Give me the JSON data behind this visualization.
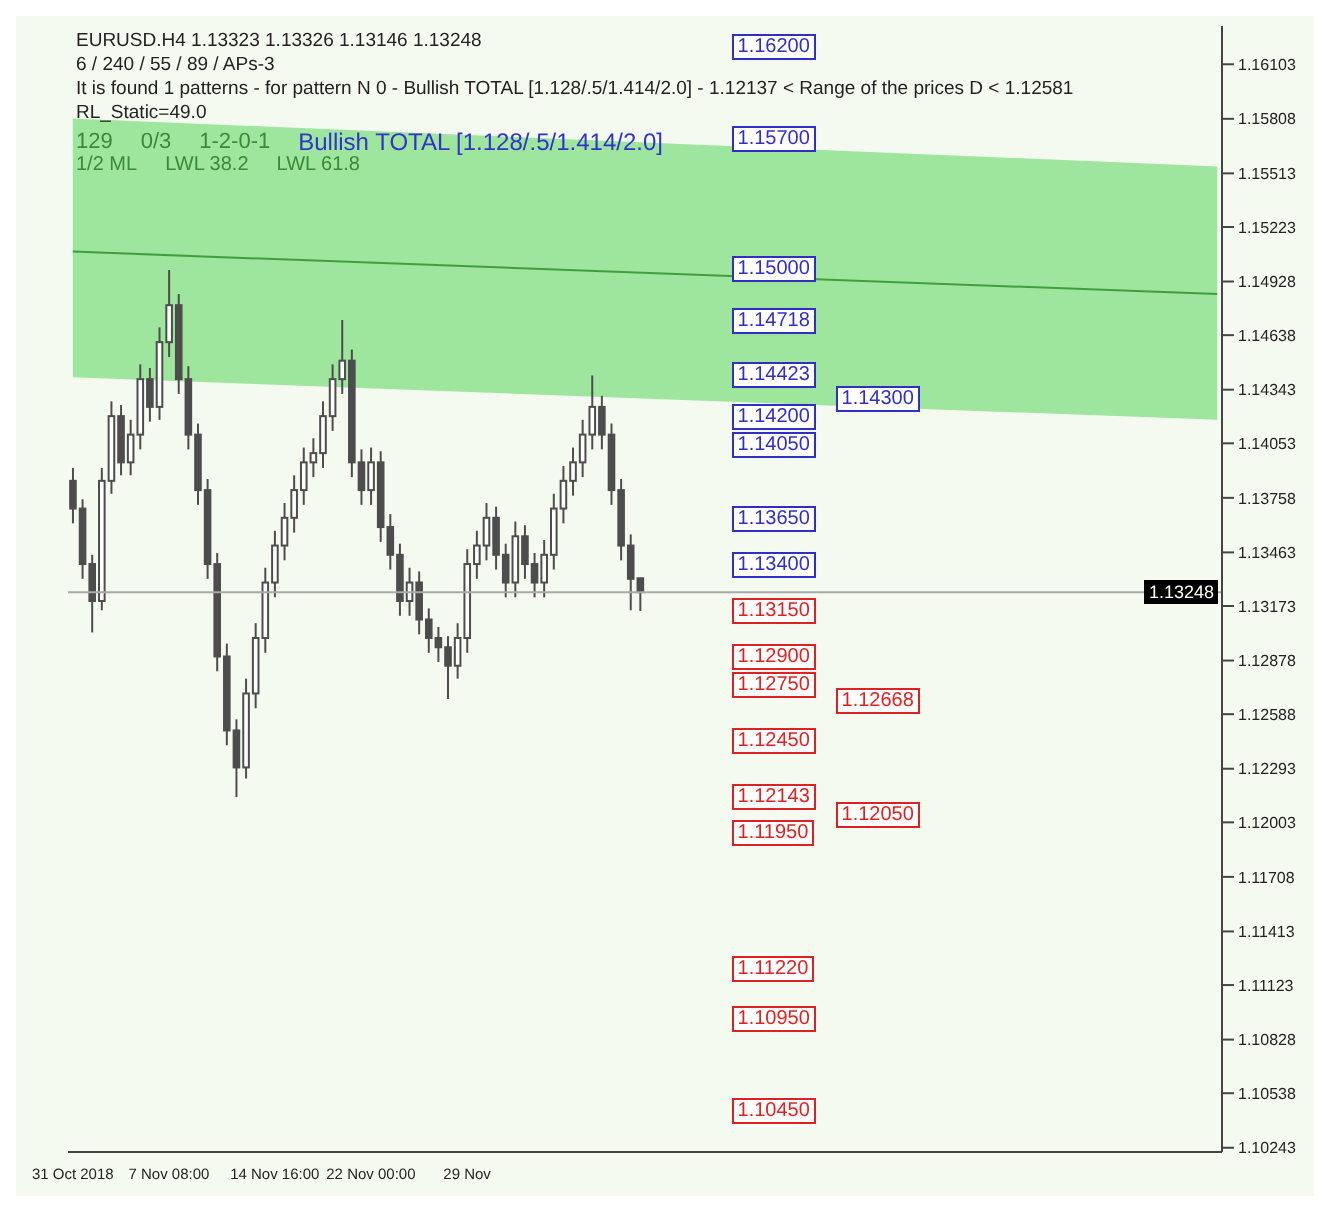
{
  "chart_data": {
    "type": "candlestick",
    "color": "#4d4d4d",
    "categories": [
      "31 Oct 2018",
      null,
      null,
      null,
      null,
      null,
      null,
      null,
      null,
      null,
      "7 Nov 08:00",
      null,
      null,
      null,
      null,
      null,
      null,
      null,
      null,
      null,
      null,
      "14 Nov 16:00",
      null,
      null,
      null,
      null,
      null,
      null,
      null,
      null,
      null,
      "22 Nov 00:00",
      null,
      null,
      null,
      null,
      null,
      null,
      null,
      null,
      null,
      "29 Nov",
      null,
      null,
      null,
      null,
      null,
      null,
      null,
      null,
      null,
      null,
      null,
      null,
      null,
      null,
      null,
      null,
      null,
      null,
      null,
      null,
      null,
      null,
      null,
      null,
      null,
      null,
      null,
      null,
      null,
      null,
      null,
      null,
      null,
      null,
      null,
      null,
      null,
      null,
      null,
      null,
      null,
      null,
      null,
      null,
      null,
      null,
      null,
      null,
      null,
      null,
      null,
      null,
      null,
      null,
      null,
      null,
      null,
      null,
      null,
      null,
      null,
      null,
      null,
      null,
      null,
      null,
      null,
      null,
      null,
      null,
      null,
      null,
      null,
      null,
      null,
      null,
      null,
      null
    ],
    "ohlc": [
      [
        1.1385,
        1.1392,
        1.1362,
        1.137
      ],
      [
        1.137,
        1.1375,
        1.1332,
        1.134
      ],
      [
        1.134,
        1.1345,
        1.1303,
        1.132
      ],
      [
        1.132,
        1.1392,
        1.1315,
        1.1385
      ],
      [
        1.1385,
        1.1428,
        1.1378,
        1.142
      ],
      [
        1.142,
        1.1426,
        1.1388,
        1.1395
      ],
      [
        1.1395,
        1.1418,
        1.1388,
        1.141
      ],
      [
        1.141,
        1.1448,
        1.1402,
        1.144
      ],
      [
        1.144,
        1.1446,
        1.1417,
        1.1425
      ],
      [
        1.1425,
        1.1468,
        1.1418,
        1.146
      ],
      [
        1.146,
        1.1499,
        1.1452,
        1.148
      ],
      [
        1.148,
        1.1486,
        1.1432,
        1.144
      ],
      [
        1.144,
        1.1447,
        1.1402,
        1.141
      ],
      [
        1.141,
        1.1416,
        1.1372,
        1.138
      ],
      [
        1.138,
        1.1386,
        1.1332,
        1.134
      ],
      [
        1.134,
        1.1346,
        1.1282,
        1.129
      ],
      [
        1.129,
        1.1297,
        1.1242,
        1.125
      ],
      [
        1.125,
        1.1256,
        1.1214,
        1.123
      ],
      [
        1.123,
        1.1278,
        1.1224,
        1.127
      ],
      [
        1.127,
        1.1308,
        1.1262,
        1.13
      ],
      [
        1.13,
        1.1338,
        1.1292,
        1.133
      ],
      [
        1.133,
        1.1358,
        1.1322,
        1.135
      ],
      [
        1.135,
        1.1373,
        1.1342,
        1.1365
      ],
      [
        1.1365,
        1.1388,
        1.1357,
        1.138
      ],
      [
        1.138,
        1.1403,
        1.1372,
        1.1395
      ],
      [
        1.1395,
        1.1408,
        1.1387,
        1.14
      ],
      [
        1.14,
        1.1428,
        1.1392,
        1.142
      ],
      [
        1.142,
        1.1448,
        1.1412,
        1.144
      ],
      [
        1.144,
        1.1472,
        1.1432,
        1.145
      ],
      [
        1.145,
        1.1456,
        1.1387,
        1.1395
      ],
      [
        1.1395,
        1.1402,
        1.1372,
        1.138
      ],
      [
        1.138,
        1.1403,
        1.1372,
        1.1395
      ],
      [
        1.1395,
        1.1401,
        1.1352,
        1.136
      ],
      [
        1.136,
        1.1367,
        1.1337,
        1.1345
      ],
      [
        1.1345,
        1.1351,
        1.1312,
        1.132
      ],
      [
        1.132,
        1.1338,
        1.1312,
        1.133
      ],
      [
        1.133,
        1.1336,
        1.1302,
        1.131
      ],
      [
        1.131,
        1.1316,
        1.1292,
        1.13
      ],
      [
        1.13,
        1.1306,
        1.1287,
        1.1295
      ],
      [
        1.1295,
        1.1301,
        1.1267,
        1.1285
      ],
      [
        1.1285,
        1.1308,
        1.1278,
        1.13
      ],
      [
        1.13,
        1.1348,
        1.1292,
        1.134
      ],
      [
        1.134,
        1.1358,
        1.1332,
        1.135
      ],
      [
        1.135,
        1.1373,
        1.1342,
        1.1365
      ],
      [
        1.1365,
        1.1371,
        1.1337,
        1.1345
      ],
      [
        1.1345,
        1.1351,
        1.1322,
        1.133
      ],
      [
        1.133,
        1.1363,
        1.1322,
        1.1355
      ],
      [
        1.1355,
        1.1361,
        1.1332,
        1.134
      ],
      [
        1.134,
        1.1346,
        1.1322,
        1.133
      ],
      [
        1.133,
        1.1353,
        1.1322,
        1.1345
      ],
      [
        1.1345,
        1.1378,
        1.1337,
        1.137
      ],
      [
        1.137,
        1.1393,
        1.1362,
        1.1385
      ],
      [
        1.1385,
        1.1403,
        1.1377,
        1.1395
      ],
      [
        1.1395,
        1.1418,
        1.1387,
        1.141
      ],
      [
        1.141,
        1.1442,
        1.1402,
        1.1425
      ],
      [
        1.1425,
        1.1431,
        1.1402,
        1.141
      ],
      [
        1.141,
        1.1416,
        1.1372,
        1.138
      ],
      [
        1.138,
        1.1386,
        1.1342,
        1.135
      ],
      [
        1.135,
        1.1356,
        1.1315,
        1.1332
      ],
      [
        1.13323,
        1.13326,
        1.13146,
        1.13248
      ],
      null,
      null,
      null,
      null,
      null,
      null,
      null,
      null,
      null,
      null,
      null,
      null,
      null,
      null,
      null,
      null,
      null,
      null,
      null,
      null,
      null,
      null,
      null,
      null,
      null,
      null,
      null,
      null,
      null,
      null,
      null,
      null,
      null,
      null,
      null,
      null,
      null,
      null,
      null,
      null,
      null,
      null,
      null,
      null,
      null,
      null,
      null,
      null,
      null,
      null,
      null,
      null,
      null,
      null,
      null,
      null,
      null,
      null,
      null,
      null
    ],
    "series": [
      {
        "type": "line",
        "color": "#3f9f3f",
        "values": [
          1.1509,
          null,
          null,
          null,
          null,
          null,
          null,
          null,
          null,
          null,
          null,
          null,
          null,
          null,
          null,
          null,
          null,
          null,
          null,
          null,
          null,
          null,
          null,
          null,
          null,
          null,
          null,
          null,
          null,
          null,
          null,
          null,
          null,
          null,
          null,
          null,
          null,
          null,
          null,
          null,
          null,
          null,
          null,
          null,
          null,
          null,
          null,
          null,
          null,
          null,
          null,
          null,
          null,
          null,
          null,
          null,
          null,
          null,
          null,
          null,
          null,
          null,
          null,
          null,
          null,
          null,
          null,
          null,
          null,
          null,
          null,
          null,
          null,
          null,
          null,
          null,
          null,
          null,
          null,
          null,
          null,
          null,
          null,
          null,
          null,
          null,
          null,
          null,
          null,
          null,
          null,
          null,
          null,
          null,
          null,
          null,
          null,
          null,
          null,
          null,
          null,
          null,
          null,
          null,
          null,
          null,
          null,
          null,
          null,
          null,
          null,
          null,
          null,
          null,
          null,
          null,
          null,
          null,
          null,
          1.1486
        ],
        "lower": [
          1.1441,
          null,
          null,
          null,
          null,
          null,
          null,
          null,
          null,
          null,
          null,
          null,
          null,
          null,
          null,
          null,
          null,
          null,
          null,
          null,
          null,
          null,
          null,
          null,
          null,
          null,
          null,
          null,
          null,
          null,
          null,
          null,
          null,
          null,
          null,
          null,
          null,
          null,
          null,
          null,
          null,
          null,
          null,
          null,
          null,
          null,
          null,
          null,
          null,
          null,
          null,
          null,
          null,
          null,
          null,
          null,
          null,
          null,
          null,
          null,
          null,
          null,
          null,
          null,
          null,
          null,
          null,
          null,
          null,
          null,
          null,
          null,
          null,
          null,
          null,
          null,
          null,
          null,
          null,
          null,
          null,
          null,
          null,
          null,
          null,
          null,
          null,
          null,
          null,
          null,
          null,
          null,
          null,
          null,
          null,
          null,
          null,
          null,
          null,
          null,
          null,
          null,
          null,
          null,
          null,
          null,
          null,
          null,
          null,
          null,
          null,
          null,
          null,
          null,
          null,
          null,
          null,
          null,
          null,
          1.1418
        ],
        "upper": [
          1.1581,
          null,
          null,
          null,
          null,
          null,
          null,
          null,
          null,
          null,
          null,
          null,
          null,
          null,
          null,
          null,
          null,
          null,
          null,
          null,
          null,
          null,
          null,
          null,
          null,
          null,
          null,
          null,
          null,
          null,
          null,
          null,
          null,
          null,
          null,
          null,
          null,
          null,
          null,
          null,
          null,
          null,
          null,
          null,
          null,
          null,
          null,
          null,
          null,
          null,
          null,
          null,
          null,
          null,
          null,
          null,
          null,
          null,
          null,
          null,
          null,
          null,
          null,
          null,
          null,
          null,
          null,
          null,
          null,
          null,
          null,
          null,
          null,
          null,
          null,
          null,
          null,
          null,
          null,
          null,
          null,
          null,
          null,
          null,
          null,
          null,
          null,
          null,
          null,
          null,
          null,
          null,
          null,
          null,
          null,
          null,
          null,
          null,
          null,
          null,
          null,
          null,
          null,
          null,
          null,
          null,
          null,
          null,
          null,
          null,
          null,
          null,
          null,
          null,
          null,
          null,
          null,
          null,
          null,
          1.1555
        ]
      }
    ],
    "ylim": [
      1.1022,
      1.1631
    ],
    "yticks": [
      1.16103,
      1.15808,
      1.15513,
      1.15223,
      1.14928,
      1.14638,
      1.14343,
      1.14053,
      1.13758,
      1.13463,
      1.13173,
      1.12878,
      1.12588,
      1.12293,
      1.12003,
      1.11708,
      1.11413,
      1.11123,
      1.10828,
      1.10538,
      1.10243
    ],
    "ref_lines": [
      {
        "axis": "y",
        "value": 1.13248,
        "label": "1.13248",
        "color": "#a9a9a9"
      }
    ],
    "annotations": [
      "EURUSD.H4 1.13323 1.13326 1.13146 1.13248",
      "6 / 240 / 55 / 89 / APs-3",
      "It is found 1 patterns - for pattern N 0 - Bullish TOTAL [1.128/.5/1.414/2.0] - 1.12137 < Range of the prices D < 1.12581",
      "RL_Static=49.0",
      "129",
      "0/3",
      "1-2-0-1",
      "Bullish TOTAL [1.128/.5/1.414/2.0]",
      "1/2 ML",
      "LWL 38.2",
      "LWL 61.8",
      {
        "text": "1.16200",
        "y": 1.162
      },
      {
        "text": "1.15700",
        "y": 1.157
      },
      {
        "text": "1.15000",
        "y": 1.15
      },
      {
        "text": "1.14718",
        "y": 1.14718
      },
      {
        "text": "1.14423",
        "y": 1.14423
      },
      {
        "text": "1.14300",
        "y": 1.143
      },
      {
        "text": "1.14200",
        "y": 1.142
      },
      {
        "text": "1.14050",
        "y": 1.1405
      },
      {
        "text": "1.13650",
        "y": 1.1365
      },
      {
        "text": "1.13400",
        "y": 1.134
      },
      {
        "text": "1.13150",
        "y": 1.1315
      },
      {
        "text": "1.12900",
        "y": 1.129
      },
      {
        "text": "1.12750",
        "y": 1.1275
      },
      {
        "text": "1.12450",
        "y": 1.1245
      },
      {
        "text": "1.12143",
        "y": 1.12143
      },
      {
        "text": "1.12050",
        "y": 1.1205
      },
      {
        "text": "1.11950",
        "y": 1.1195
      },
      {
        "text": "1.12668",
        "y": 1.12668
      },
      {
        "text": "1.11220",
        "y": 1.1122
      },
      {
        "text": "1.10950",
        "y": 1.1095
      },
      {
        "text": "1.10450",
        "y": 1.1045
      }
    ]
  }
}
